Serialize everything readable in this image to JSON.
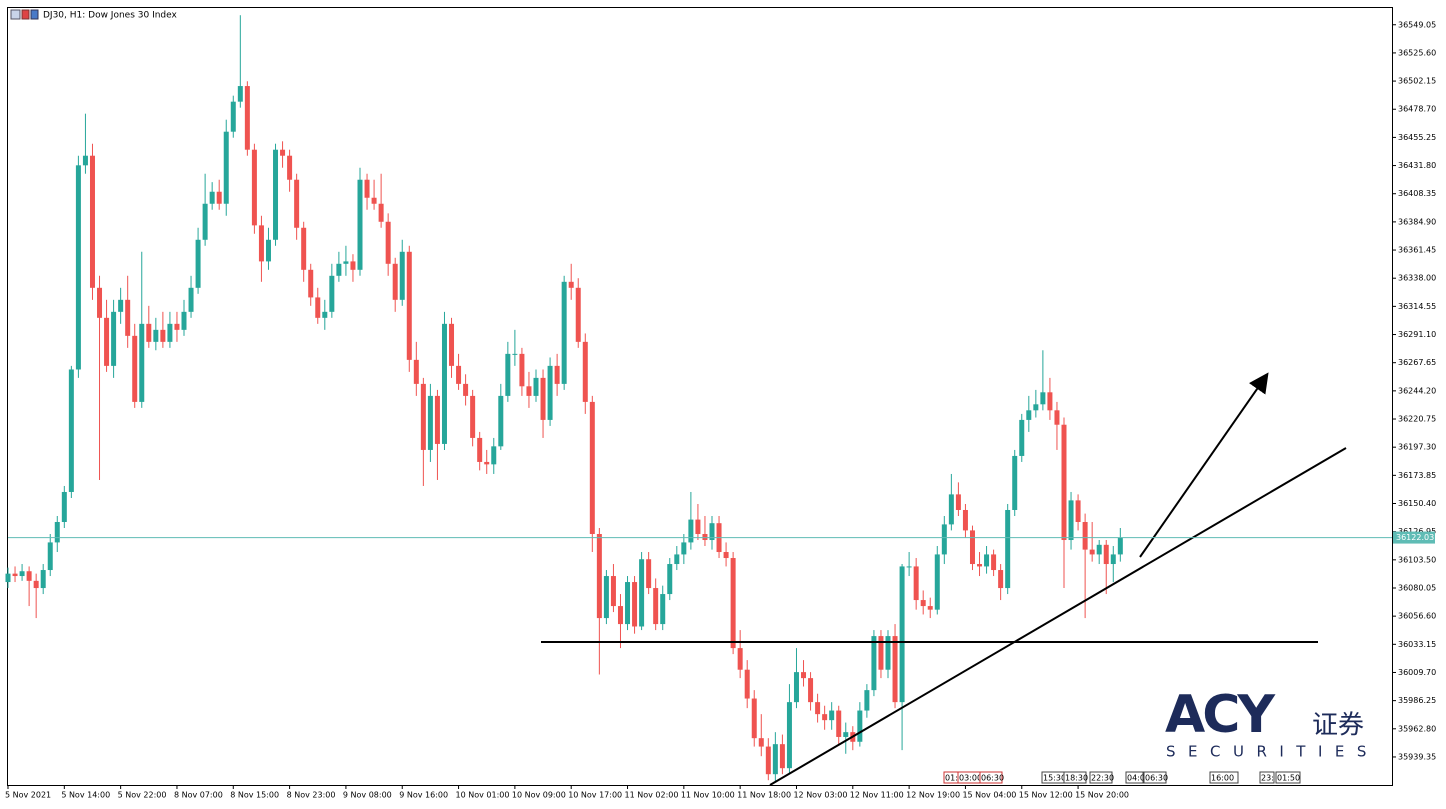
{
  "chart_data": {
    "type": "candlestick",
    "title": "DJ30, H1:  Dow Jones 30 Index",
    "bull_color": "#26a69a",
    "bear_color": "#ef5350",
    "ylim": [
      35916,
      36563
    ],
    "yticks": [
      36549.05,
      {
        "value": 36525.6,
        "label": "36525.60"
      },
      36502.15,
      {
        "value": 36478.7,
        "label": "36478.70"
      },
      36455.25,
      {
        "value": 36431.8,
        "label": "36431.80"
      },
      36408.35,
      {
        "value": 36384.9,
        "label": "36384.90"
      },
      36361.45,
      {
        "value": 36338,
        "label": "36338.00"
      },
      36314.55,
      {
        "value": 36291.1,
        "label": "36291.10"
      },
      36267.65,
      {
        "value": 36244.2,
        "label": "36244.20"
      },
      36220.75,
      {
        "value": 36197.3,
        "label": "36197.30"
      },
      36173.85,
      {
        "value": 36150.4,
        "label": "36150.40"
      },
      36126.95,
      {
        "value": 36103.5,
        "label": "36103.50"
      },
      36080.05,
      {
        "value": 36056.6,
        "label": "36056.60"
      },
      36033.15,
      {
        "value": 36009.7,
        "label": "36009.70"
      },
      35986.25,
      {
        "value": 35962.8,
        "label": "35962.80"
      },
      35939.35
    ],
    "last_price": 36122.03,
    "categories": [
      "5 Nov 2021",
      null,
      null,
      null,
      null,
      null,
      null,
      null,
      "5 Nov 14:00",
      null,
      null,
      null,
      null,
      null,
      null,
      null,
      "5 Nov 22:00",
      null,
      null,
      null,
      null,
      null,
      null,
      null,
      "8 Nov 07:00",
      null,
      null,
      null,
      null,
      null,
      null,
      null,
      "8 Nov 15:00",
      null,
      null,
      null,
      null,
      null,
      null,
      null,
      "8 Nov 23:00",
      null,
      null,
      null,
      null,
      null,
      null,
      null,
      "9 Nov 08:00",
      null,
      null,
      null,
      null,
      null,
      null,
      null,
      "9 Nov 16:00",
      null,
      null,
      null,
      null,
      null,
      null,
      null,
      "10 Nov 01:00",
      null,
      null,
      null,
      null,
      null,
      null,
      null,
      "10 Nov 09:00",
      null,
      null,
      null,
      null,
      null,
      null,
      null,
      "10 Nov 17:00",
      null,
      null,
      null,
      null,
      null,
      null,
      null,
      "11 Nov 02:00",
      null,
      null,
      null,
      null,
      null,
      null,
      null,
      "11 Nov 10:00",
      null,
      null,
      null,
      null,
      null,
      null,
      null,
      "11 Nov 18:00",
      null,
      null,
      null,
      null,
      null,
      null,
      null,
      "12 Nov 03:00",
      null,
      null,
      null,
      null,
      null,
      null,
      null,
      "12 Nov 11:00",
      null,
      null,
      null,
      null,
      null,
      null,
      null,
      "12 Nov 19:00",
      null,
      null,
      null,
      null,
      null,
      null,
      null,
      "15 Nov 04:00",
      null,
      null,
      null,
      null,
      null,
      null,
      null,
      "15 Nov 12:00",
      null,
      null,
      null,
      null,
      null,
      null,
      null,
      "15 Nov 20:00",
      null,
      null,
      null,
      null,
      null,
      null
    ],
    "candles": [
      [
        36085,
        36097,
        36080,
        36092
      ],
      [
        36092,
        36098,
        36085,
        36090
      ],
      [
        36090,
        36100,
        36086,
        36094
      ],
      [
        36094,
        36098,
        36065,
        36086
      ],
      [
        36086,
        36092,
        36055,
        36080
      ],
      [
        36080,
        36100,
        36075,
        36095
      ],
      [
        36095,
        36125,
        36090,
        36118
      ],
      [
        36118,
        36140,
        36110,
        36135
      ],
      [
        36135,
        36165,
        36130,
        36160
      ],
      [
        36160,
        36265,
        36155,
        36262
      ],
      [
        36262,
        36440,
        36255,
        36432
      ],
      [
        36432,
        36475,
        36425,
        36440
      ],
      [
        36440,
        36450,
        36320,
        36330
      ],
      [
        36330,
        36340,
        36170,
        36305
      ],
      [
        36305,
        36320,
        36260,
        36265
      ],
      [
        36265,
        36320,
        36255,
        36310
      ],
      [
        36310,
        36330,
        36300,
        36320
      ],
      [
        36320,
        36340,
        36280,
        36290
      ],
      [
        36290,
        36300,
        36230,
        36235
      ],
      [
        36235,
        36360,
        36230,
        36300
      ],
      [
        36300,
        36315,
        36280,
        36285
      ],
      [
        36285,
        36305,
        36278,
        36295
      ],
      [
        36295,
        36310,
        36280,
        36285
      ],
      [
        36285,
        36310,
        36280,
        36300
      ],
      [
        36300,
        36310,
        36285,
        36295
      ],
      [
        36295,
        36320,
        36290,
        36310
      ],
      [
        36310,
        36340,
        36305,
        36330
      ],
      [
        36330,
        36380,
        36325,
        36370
      ],
      [
        36370,
        36425,
        36365,
        36400
      ],
      [
        36400,
        36418,
        36395,
        36410
      ],
      [
        36410,
        36420,
        36395,
        36400
      ],
      [
        36400,
        36470,
        36390,
        36460
      ],
      [
        36460,
        36490,
        36455,
        36485
      ],
      [
        36485,
        36557,
        36480,
        36498
      ],
      [
        36498,
        36502,
        36440,
        36445
      ],
      [
        36445,
        36450,
        36375,
        36382
      ],
      [
        36382,
        36390,
        36335,
        36352
      ],
      [
        36352,
        36380,
        36345,
        36370
      ],
      [
        36370,
        36450,
        36365,
        36445
      ],
      [
        36445,
        36452,
        36430,
        36440
      ],
      [
        36440,
        36445,
        36410,
        36420
      ],
      [
        36420,
        36425,
        36370,
        36380
      ],
      [
        36380,
        36385,
        36335,
        36345
      ],
      [
        36345,
        36350,
        36315,
        36322
      ],
      [
        36322,
        36330,
        36300,
        36305
      ],
      [
        36305,
        36320,
        36295,
        36310
      ],
      [
        36310,
        36350,
        36305,
        36340
      ],
      [
        36340,
        36360,
        36335,
        36350
      ],
      [
        36350,
        36365,
        36340,
        36352
      ],
      [
        36352,
        36358,
        36335,
        36345
      ],
      [
        36345,
        36430,
        36340,
        36420
      ],
      [
        36420,
        36425,
        36395,
        36405
      ],
      [
        36405,
        36420,
        36395,
        36400
      ],
      [
        36400,
        36425,
        36380,
        36385
      ],
      [
        36385,
        36392,
        36340,
        36350
      ],
      [
        36350,
        36355,
        36310,
        36320
      ],
      [
        36320,
        36370,
        36315,
        36360
      ],
      [
        36360,
        36365,
        36260,
        36270
      ],
      [
        36270,
        36285,
        36240,
        36250
      ],
      [
        36250,
        36255,
        36165,
        36195
      ],
      [
        36195,
        36250,
        36185,
        36240
      ],
      [
        36240,
        36245,
        36170,
        36200
      ],
      [
        36200,
        36310,
        36195,
        36300
      ],
      [
        36300,
        36305,
        36255,
        36265
      ],
      [
        36265,
        36275,
        36245,
        36250
      ],
      [
        36250,
        36258,
        36232,
        36240
      ],
      [
        36240,
        36245,
        36198,
        36205
      ],
      [
        36205,
        36210,
        36178,
        36185
      ],
      [
        36185,
        36195,
        36175,
        36183
      ],
      [
        36183,
        36205,
        36175,
        36198
      ],
      [
        36198,
        36250,
        36195,
        36240
      ],
      [
        36240,
        36285,
        36235,
        36275
      ],
      [
        36275,
        36295,
        36265,
        36275
      ],
      [
        36275,
        36280,
        36240,
        36248
      ],
      [
        36248,
        36260,
        36230,
        36240
      ],
      [
        36240,
        36262,
        36235,
        36255
      ],
      [
        36255,
        36262,
        36205,
        36220
      ],
      [
        36220,
        36272,
        36215,
        36265
      ],
      [
        36265,
        36275,
        36240,
        36250
      ],
      [
        36250,
        36340,
        36245,
        36335
      ],
      [
        36335,
        36350,
        36320,
        36330
      ],
      [
        36330,
        36338,
        36280,
        36285
      ],
      [
        36285,
        36292,
        36225,
        36235
      ],
      [
        36235,
        36240,
        36110,
        36125
      ],
      [
        36125,
        36130,
        36008,
        36055
      ],
      [
        36055,
        36095,
        36050,
        36090
      ],
      [
        36090,
        36100,
        36060,
        36065
      ],
      [
        36065,
        36075,
        36030,
        36050
      ],
      [
        36050,
        36090,
        36045,
        36085
      ],
      [
        36085,
        36090,
        36042,
        36048
      ],
      [
        36048,
        36110,
        36045,
        36104
      ],
      [
        36104,
        36110,
        36075,
        36080
      ],
      [
        36080,
        36088,
        36045,
        36050
      ],
      [
        36050,
        36082,
        36045,
        36075
      ],
      [
        36075,
        36105,
        36070,
        36100
      ],
      [
        36100,
        36115,
        36095,
        36108
      ],
      [
        36108,
        36125,
        36100,
        36118
      ],
      [
        36118,
        36160,
        36112,
        36137
      ],
      [
        36137,
        36150,
        36120,
        36125
      ],
      [
        36125,
        36140,
        36115,
        36120
      ],
      [
        36120,
        36140,
        36112,
        36134
      ],
      [
        36134,
        36140,
        36105,
        36110
      ],
      [
        36110,
        36118,
        36098,
        36105
      ],
      [
        36105,
        36110,
        36025,
        36030
      ],
      [
        36030,
        36045,
        36005,
        36012
      ],
      [
        36012,
        36020,
        35980,
        35988
      ],
      [
        35988,
        35995,
        35948,
        35955
      ],
      [
        35955,
        35975,
        35940,
        35948
      ],
      [
        35948,
        35955,
        35920,
        35925
      ],
      [
        35925,
        35960,
        35918,
        35950
      ],
      [
        35950,
        35958,
        35925,
        35930
      ],
      [
        35930,
        36000,
        35925,
        35985
      ],
      [
        35985,
        36030,
        35980,
        36010
      ],
      [
        36010,
        36020,
        35998,
        36005
      ],
      [
        36005,
        36010,
        35978,
        35985
      ],
      [
        35985,
        35992,
        35968,
        35975
      ],
      [
        35975,
        35982,
        35962,
        35970
      ],
      [
        35970,
        35985,
        35962,
        35978
      ],
      [
        35978,
        35982,
        35950,
        35956
      ],
      [
        35956,
        35968,
        35942,
        35960
      ],
      [
        35960,
        35965,
        35945,
        35952
      ],
      [
        35952,
        35985,
        35948,
        35978
      ],
      [
        35978,
        36000,
        35972,
        35995
      ],
      [
        35995,
        36045,
        35990,
        36040
      ],
      [
        36040,
        36045,
        36005,
        36012
      ],
      [
        36012,
        36045,
        36005,
        36040
      ],
      [
        36040,
        36050,
        35980,
        35985
      ],
      [
        35985,
        36100,
        35945,
        36098
      ],
      [
        36098,
        36110,
        36090,
        36098
      ],
      [
        36098,
        36105,
        36062,
        36070
      ],
      [
        36070,
        36078,
        36058,
        36065
      ],
      [
        36065,
        36072,
        36055,
        36062
      ],
      [
        36062,
        36115,
        36058,
        36108
      ],
      [
        36108,
        36140,
        36100,
        36133
      ],
      [
        36133,
        36175,
        36128,
        36158
      ],
      [
        36158,
        36168,
        36140,
        36145
      ],
      [
        36145,
        36150,
        36122,
        36128
      ],
      [
        36128,
        36132,
        36095,
        36100
      ],
      [
        36100,
        36110,
        36090,
        36098
      ],
      [
        36098,
        36115,
        36092,
        36108
      ],
      [
        36108,
        36112,
        36090,
        36095
      ],
      [
        36095,
        36100,
        36070,
        36080
      ],
      [
        36080,
        36150,
        36075,
        36145
      ],
      [
        36145,
        36195,
        36140,
        36190
      ],
      [
        36190,
        36225,
        36185,
        36220
      ],
      [
        36220,
        36240,
        36210,
        36228
      ],
      [
        36228,
        36245,
        36222,
        36233
      ],
      [
        36233,
        36278,
        36228,
        36243
      ],
      [
        36243,
        36255,
        36220,
        36228
      ],
      [
        36228,
        36235,
        36195,
        36216
      ],
      [
        36216,
        36222,
        36080,
        36120
      ],
      [
        36120,
        36160,
        36112,
        36153
      ],
      [
        36153,
        36158,
        36128,
        36135
      ],
      [
        36135,
        36142,
        36055,
        36112
      ],
      [
        36112,
        36135,
        36102,
        36108
      ],
      [
        36108,
        36120,
        36100,
        36116
      ],
      [
        36116,
        36120,
        36075,
        36100
      ],
      [
        36100,
        36115,
        36085,
        36108
      ],
      [
        36108,
        36130,
        36102,
        36122
      ]
    ],
    "time_markers": [
      "01:",
      "03:00",
      "06:30",
      "15:30",
      "18:30",
      "22:30",
      "04:0",
      "06:30",
      "16:00",
      "23:",
      "01:50"
    ]
  },
  "logo": {
    "brand": "ACY",
    "chinese": "证券",
    "subtitle": "SECURITIES"
  }
}
